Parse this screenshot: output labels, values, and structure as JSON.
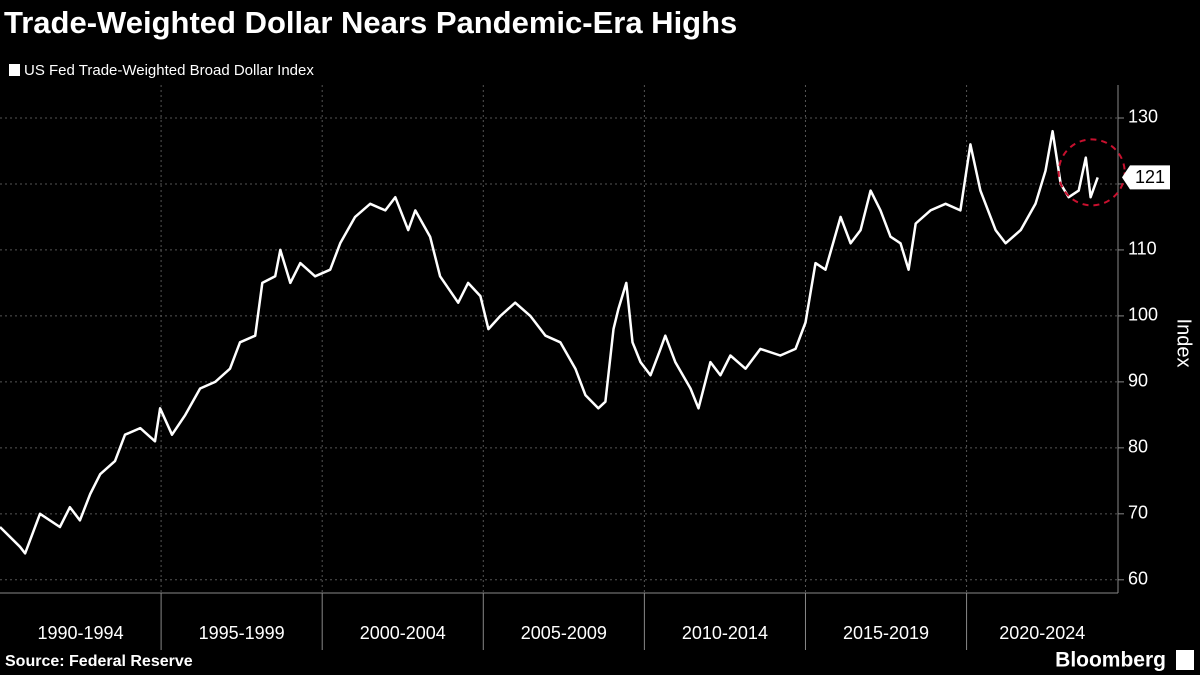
{
  "chart_data": {
    "type": "line",
    "title": "Trade-Weighted Dollar Nears Pandemic-Era Highs",
    "y_label": "Index",
    "source": "Source: Federal Reserve",
    "brand": "Bloomberg",
    "periods": [
      "1990-1994",
      "1995-1999",
      "2000-2004",
      "2005-2009",
      "2010-2014",
      "2015-2019",
      "2020-2024"
    ],
    "xlim": [
      1990,
      2024.7
    ],
    "xticks": [
      1995,
      2000,
      2005,
      2010,
      2015,
      2020
    ],
    "ylim": [
      58,
      135
    ],
    "yticks": [
      60,
      70,
      80,
      90,
      100,
      110,
      120,
      130
    ],
    "grid": true,
    "x": [
      1990.0,
      1990.62,
      1990.78,
      1991.24,
      1991.86,
      1992.17,
      1992.48,
      1992.8,
      1993.11,
      1993.57,
      1993.88,
      1994.35,
      1994.81,
      1994.97,
      1995.34,
      1995.75,
      1996.21,
      1996.68,
      1997.14,
      1997.45,
      1997.92,
      1998.14,
      1998.54,
      1998.7,
      1999.01,
      1999.32,
      1999.78,
      2000.25,
      2000.56,
      2001.02,
      2001.49,
      2001.96,
      2002.27,
      2002.67,
      2002.89,
      2003.35,
      2003.66,
      2004.22,
      2004.53,
      2004.91,
      2005.16,
      2005.53,
      2005.99,
      2006.46,
      2006.93,
      2007.39,
      2007.86,
      2008.17,
      2008.57,
      2008.79,
      2009.04,
      2009.19,
      2009.44,
      2009.63,
      2009.88,
      2010.19,
      2010.5,
      2010.65,
      2010.96,
      2011.43,
      2011.68,
      2012.05,
      2012.36,
      2012.67,
      2013.14,
      2013.6,
      2014.22,
      2014.69,
      2015.0,
      2015.31,
      2015.62,
      2016.09,
      2016.4,
      2016.71,
      2017.02,
      2017.33,
      2017.64,
      2017.95,
      2018.2,
      2018.42,
      2018.88,
      2019.35,
      2019.81,
      2020.12,
      2020.43,
      2020.9,
      2021.21,
      2021.68,
      2022.14,
      2022.45,
      2022.67,
      2022.92,
      2023.17,
      2023.48,
      2023.7,
      2023.85,
      2024.07
    ],
    "series": [
      {
        "name": "US Fed Trade-Weighted Broad Dollar Index",
        "color": "#ffffff",
        "values": [
          68,
          65,
          64,
          70,
          68,
          71,
          69,
          73,
          76,
          78,
          82,
          83,
          81,
          86,
          82,
          85,
          89,
          90,
          92,
          96,
          97,
          105,
          106,
          110,
          105,
          108,
          106,
          107,
          111,
          115,
          117,
          116,
          118,
          113,
          116,
          112,
          106,
          102,
          105,
          103,
          98,
          100,
          102,
          100,
          97,
          96,
          92,
          88,
          86,
          87,
          98,
          101,
          105,
          96,
          93,
          91,
          95,
          97,
          93,
          89,
          86,
          93,
          91,
          94,
          92,
          95,
          94,
          95,
          99,
          108,
          107,
          115,
          111,
          113,
          119,
          116,
          112,
          111,
          107,
          114,
          116,
          117,
          116,
          126,
          119,
          113,
          111,
          113,
          117,
          122,
          128,
          120,
          118,
          119,
          124,
          118,
          121
        ]
      }
    ],
    "highlight_color": "#c8102e"
  }
}
